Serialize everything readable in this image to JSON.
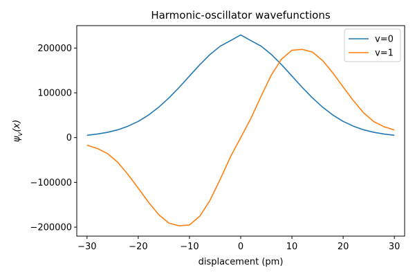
{
  "chart_data": {
    "type": "line",
    "title": "Harmonic-oscillator wavefunctions",
    "xlabel": "displacement (pm)",
    "ylabel": "ψ_v(x)",
    "xlim": [
      -32,
      32
    ],
    "ylim": [
      -220000,
      250000
    ],
    "xticks": [
      -30,
      -20,
      -10,
      0,
      10,
      20,
      30
    ],
    "xtick_labels": [
      "−30",
      "−20",
      "−10",
      "0",
      "10",
      "20",
      "30"
    ],
    "yticks": [
      -200000,
      -100000,
      0,
      100000,
      200000
    ],
    "ytick_labels": [
      "−200000",
      "−100000",
      "0",
      "100000",
      "200000"
    ],
    "grid": false,
    "legend": "top-right",
    "x": [
      -30,
      -28,
      -26,
      -24,
      -22,
      -20,
      -18,
      -16,
      -14,
      -12,
      -10,
      -8,
      -6,
      -4,
      -2,
      0,
      2,
      4,
      6,
      8,
      10,
      12,
      14,
      16,
      18,
      20,
      22,
      24,
      26,
      28,
      30
    ],
    "series": [
      {
        "name": "v=0",
        "color": "#1f77b4",
        "values": [
          5200,
          7900,
          11800,
          17400,
          25500,
          36200,
          50300,
          67900,
          88700,
          112200,
          137400,
          162500,
          185500,
          204100,
          216400,
          229300,
          216400,
          204100,
          185500,
          162500,
          137400,
          112200,
          88700,
          67900,
          50300,
          36200,
          25500,
          17400,
          11800,
          7900,
          5200
        ]
      },
      {
        "name": "v=1",
        "color": "#ff7f0e",
        "values": [
          -17000,
          -24200,
          -35700,
          -55200,
          -82400,
          -113000,
          -144200,
          -172000,
          -191000,
          -197000,
          -195000,
          -175600,
          -140200,
          -93000,
          -43000,
          0,
          43000,
          93000,
          140200,
          175600,
          195000,
          197000,
          191000,
          172000,
          144200,
          113000,
          82400,
          55200,
          35700,
          24200,
          17000
        ]
      }
    ]
  }
}
